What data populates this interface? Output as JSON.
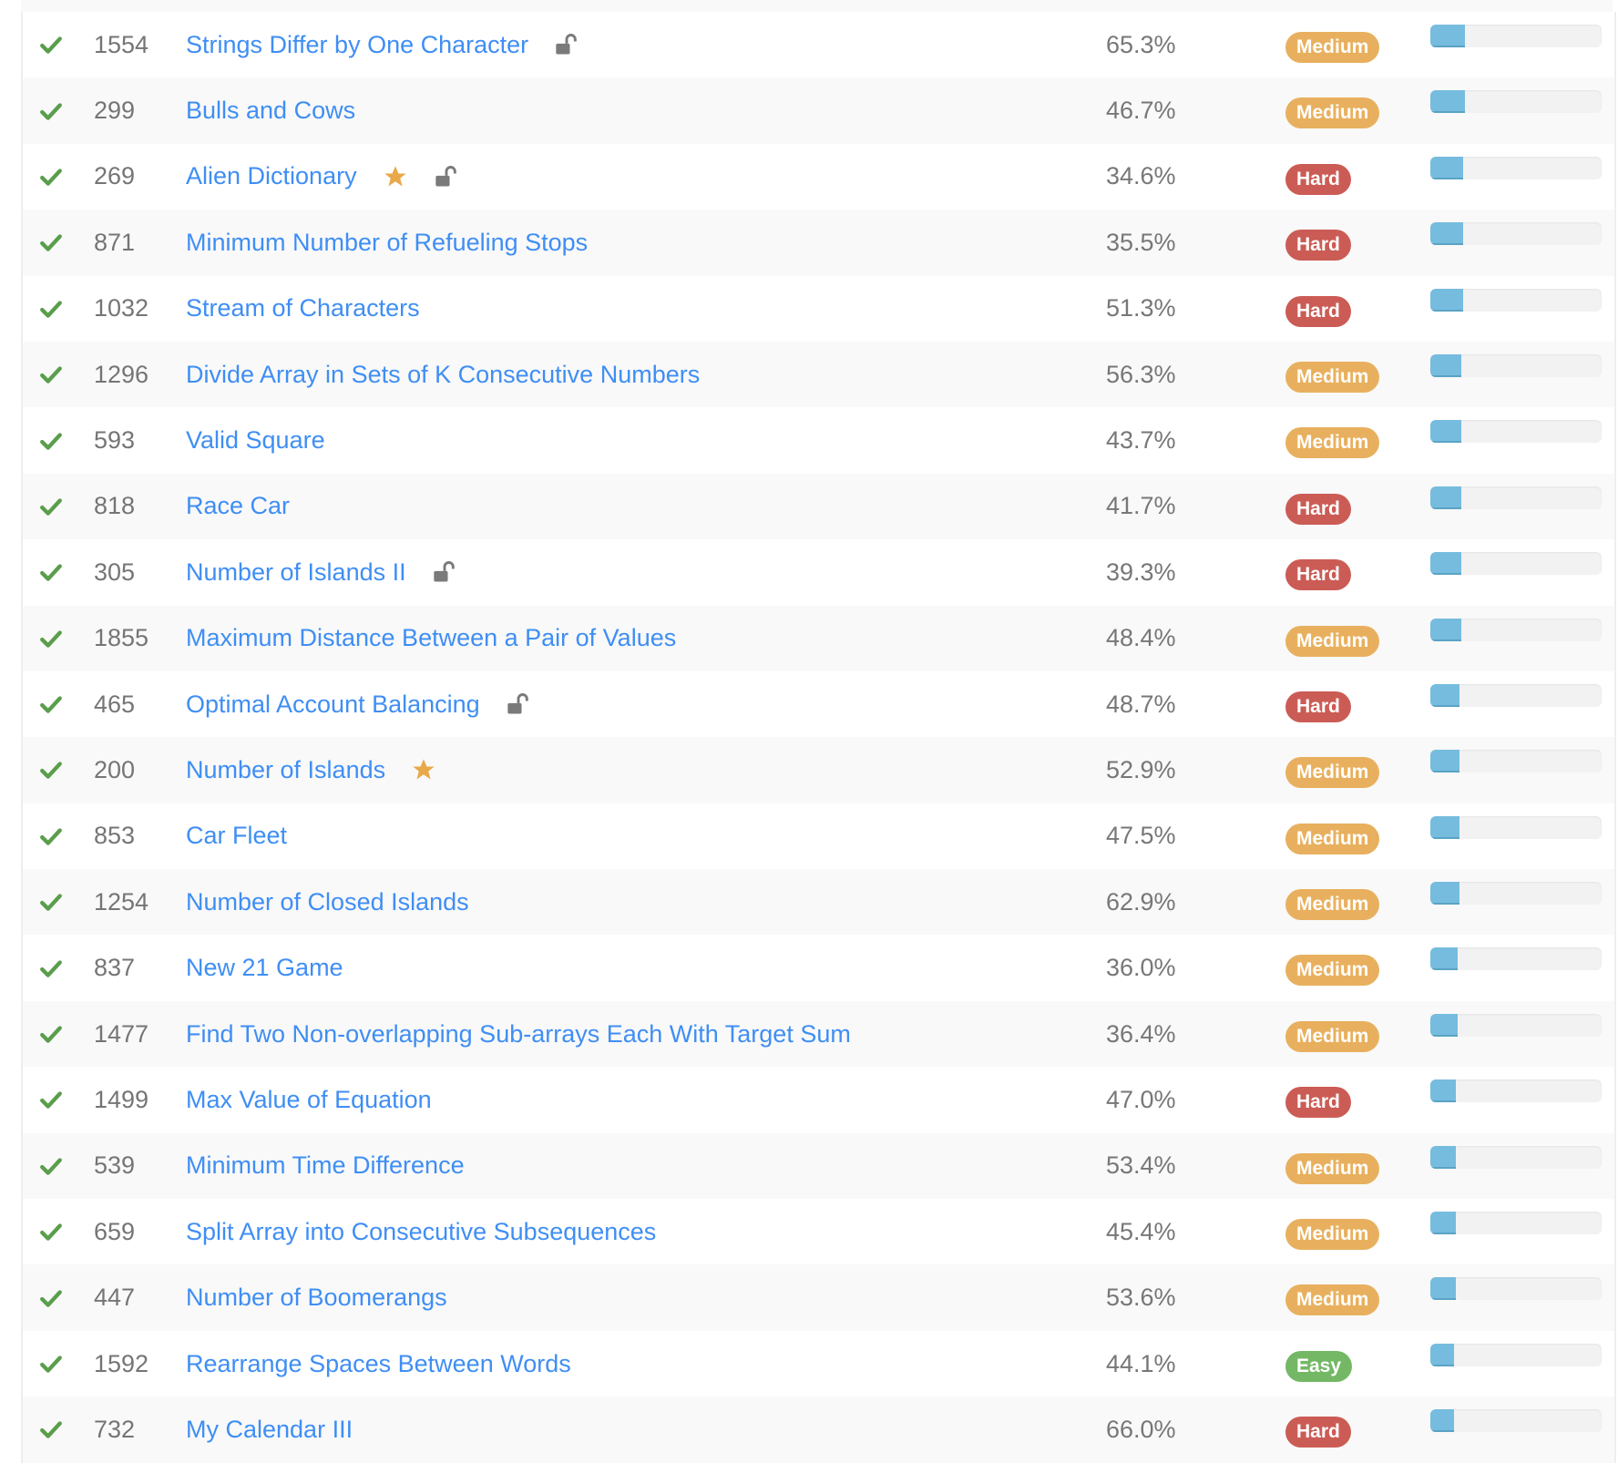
{
  "colors": {
    "medium": "#e8b05e",
    "hard": "#cb5c55",
    "easy": "#74b866",
    "link": "#3f8ef4",
    "check": "#5a9e4c",
    "bar": "#76bcde"
  },
  "problems": [
    {
      "id": "1554",
      "title": "Strings Differ by One Character",
      "acceptance": "65.3%",
      "difficulty": "Medium",
      "star": false,
      "locked": true,
      "frequency": 20
    },
    {
      "id": "299",
      "title": "Bulls and Cows",
      "acceptance": "46.7%",
      "difficulty": "Medium",
      "star": false,
      "locked": false,
      "frequency": 20
    },
    {
      "id": "269",
      "title": "Alien Dictionary",
      "acceptance": "34.6%",
      "difficulty": "Hard",
      "star": true,
      "locked": true,
      "frequency": 19
    },
    {
      "id": "871",
      "title": "Minimum Number of Refueling Stops",
      "acceptance": "35.5%",
      "difficulty": "Hard",
      "star": false,
      "locked": false,
      "frequency": 19
    },
    {
      "id": "1032",
      "title": "Stream of Characters",
      "acceptance": "51.3%",
      "difficulty": "Hard",
      "star": false,
      "locked": false,
      "frequency": 19
    },
    {
      "id": "1296",
      "title": "Divide Array in Sets of K Consecutive Numbers",
      "acceptance": "56.3%",
      "difficulty": "Medium",
      "star": false,
      "locked": false,
      "frequency": 18
    },
    {
      "id": "593",
      "title": "Valid Square",
      "acceptance": "43.7%",
      "difficulty": "Medium",
      "star": false,
      "locked": false,
      "frequency": 18
    },
    {
      "id": "818",
      "title": "Race Car",
      "acceptance": "41.7%",
      "difficulty": "Hard",
      "star": false,
      "locked": false,
      "frequency": 18
    },
    {
      "id": "305",
      "title": "Number of Islands II",
      "acceptance": "39.3%",
      "difficulty": "Hard",
      "star": false,
      "locked": true,
      "frequency": 18
    },
    {
      "id": "1855",
      "title": "Maximum Distance Between a Pair of Values",
      "acceptance": "48.4%",
      "difficulty": "Medium",
      "star": false,
      "locked": false,
      "frequency": 18
    },
    {
      "id": "465",
      "title": "Optimal Account Balancing",
      "acceptance": "48.7%",
      "difficulty": "Hard",
      "star": false,
      "locked": true,
      "frequency": 17
    },
    {
      "id": "200",
      "title": "Number of Islands",
      "acceptance": "52.9%",
      "difficulty": "Medium",
      "star": true,
      "locked": false,
      "frequency": 17
    },
    {
      "id": "853",
      "title": "Car Fleet",
      "acceptance": "47.5%",
      "difficulty": "Medium",
      "star": false,
      "locked": false,
      "frequency": 17
    },
    {
      "id": "1254",
      "title": "Number of Closed Islands",
      "acceptance": "62.9%",
      "difficulty": "Medium",
      "star": false,
      "locked": false,
      "frequency": 17
    },
    {
      "id": "837",
      "title": "New 21 Game",
      "acceptance": "36.0%",
      "difficulty": "Medium",
      "star": false,
      "locked": false,
      "frequency": 16
    },
    {
      "id": "1477",
      "title": "Find Two Non-overlapping Sub-arrays Each With Target Sum",
      "acceptance": "36.4%",
      "difficulty": "Medium",
      "star": false,
      "locked": false,
      "frequency": 16
    },
    {
      "id": "1499",
      "title": "Max Value of Equation",
      "acceptance": "47.0%",
      "difficulty": "Hard",
      "star": false,
      "locked": false,
      "frequency": 15
    },
    {
      "id": "539",
      "title": "Minimum Time Difference",
      "acceptance": "53.4%",
      "difficulty": "Medium",
      "star": false,
      "locked": false,
      "frequency": 15
    },
    {
      "id": "659",
      "title": "Split Array into Consecutive Subsequences",
      "acceptance": "45.4%",
      "difficulty": "Medium",
      "star": false,
      "locked": false,
      "frequency": 15
    },
    {
      "id": "447",
      "title": "Number of Boomerangs",
      "acceptance": "53.6%",
      "difficulty": "Medium",
      "star": false,
      "locked": false,
      "frequency": 15
    },
    {
      "id": "1592",
      "title": "Rearrange Spaces Between Words",
      "acceptance": "44.1%",
      "difficulty": "Easy",
      "star": false,
      "locked": false,
      "frequency": 14
    },
    {
      "id": "732",
      "title": "My Calendar III",
      "acceptance": "66.0%",
      "difficulty": "Hard",
      "star": false,
      "locked": false,
      "frequency": 14
    }
  ]
}
